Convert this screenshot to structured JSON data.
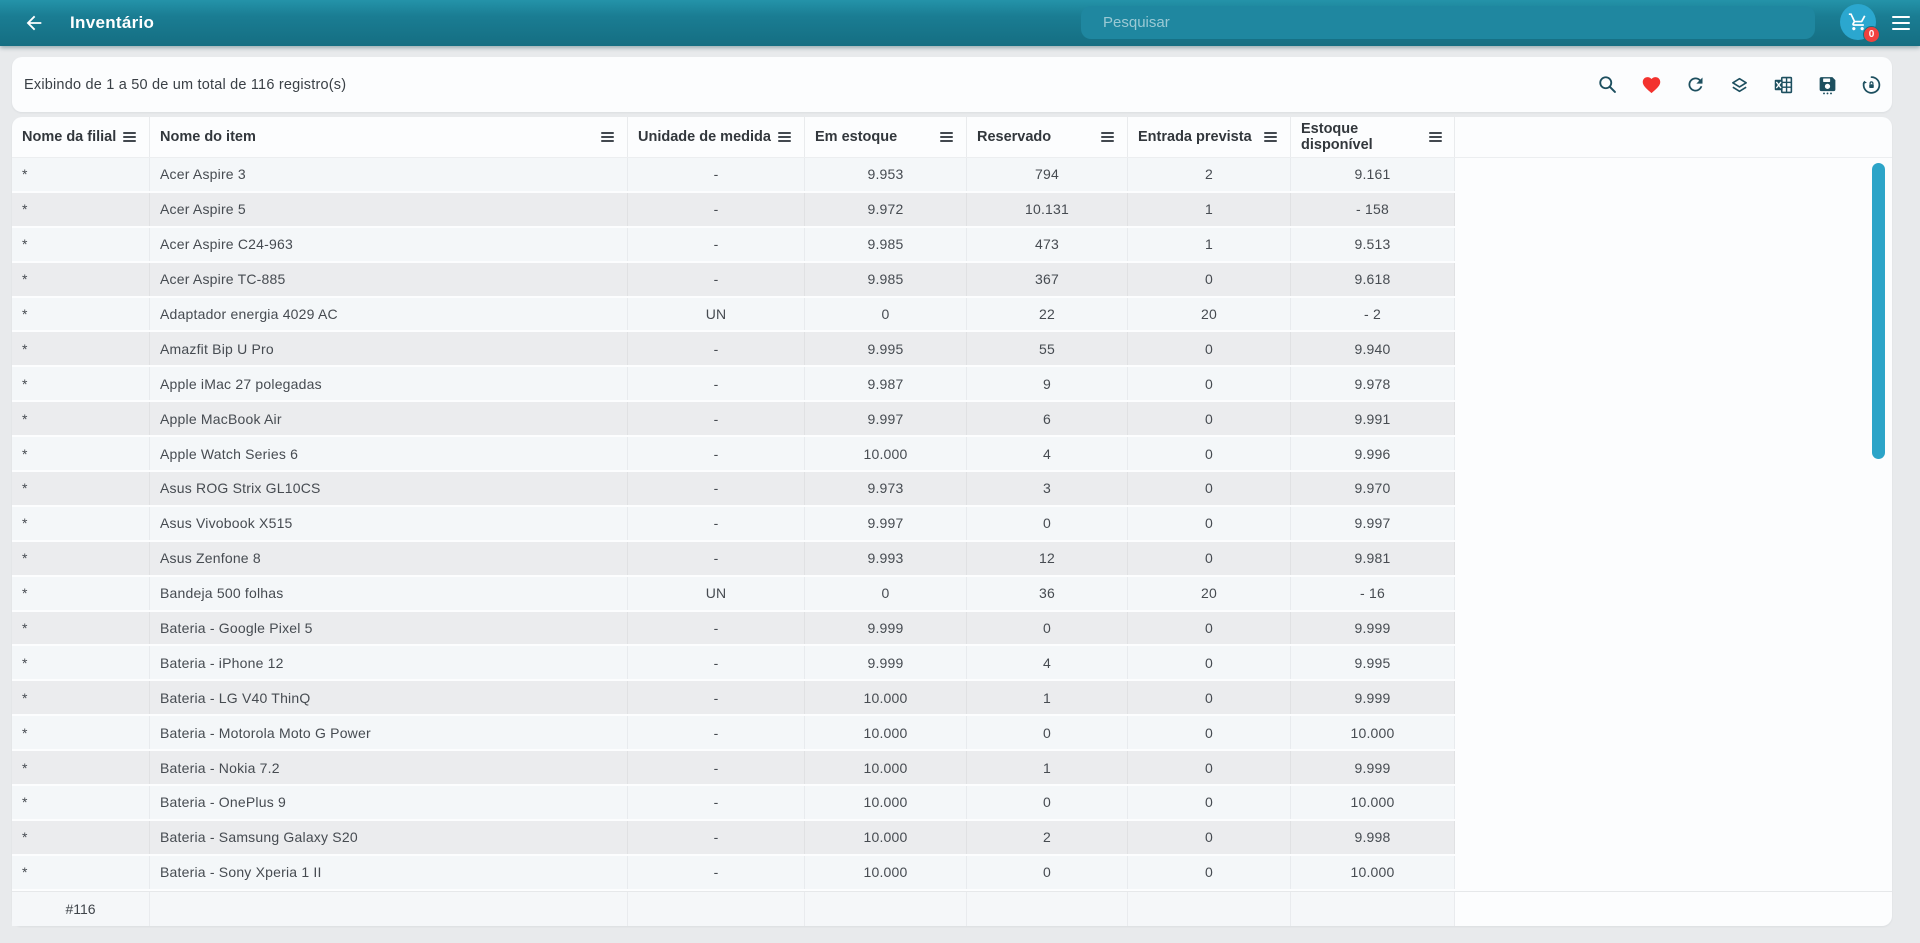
{
  "header": {
    "title": "Inventário",
    "search_placeholder": "Pesquisar",
    "cart_badge": "0"
  },
  "toolbar": {
    "status": "Exibindo de 1 a 50 de um total de 116 registro(s)",
    "icons": [
      "search",
      "favorites-heart",
      "refresh",
      "layers",
      "export-excel",
      "save",
      "restore-history"
    ]
  },
  "table": {
    "columns": [
      {
        "key": "filial",
        "label": "Nome da filial",
        "align": "left"
      },
      {
        "key": "item",
        "label": "Nome do item",
        "align": "left"
      },
      {
        "key": "unidade",
        "label": "Unidade de medida",
        "align": "center"
      },
      {
        "key": "estoque",
        "label": "Em estoque",
        "align": "center"
      },
      {
        "key": "reservado",
        "label": "Reservado",
        "align": "center"
      },
      {
        "key": "entrada",
        "label": "Entrada prevista",
        "align": "center"
      },
      {
        "key": "disponivel",
        "label": "Estoque disponível",
        "align": "center"
      }
    ],
    "rows": [
      {
        "filial": "*",
        "item": "Acer Aspire 3",
        "unidade": "-",
        "estoque": "9.953",
        "reservado": "794",
        "entrada": "2",
        "disponivel": "9.161"
      },
      {
        "filial": "*",
        "item": "Acer Aspire 5",
        "unidade": "-",
        "estoque": "9.972",
        "reservado": "10.131",
        "entrada": "1",
        "disponivel": "- 158"
      },
      {
        "filial": "*",
        "item": "Acer Aspire C24-963",
        "unidade": "-",
        "estoque": "9.985",
        "reservado": "473",
        "entrada": "1",
        "disponivel": "9.513"
      },
      {
        "filial": "*",
        "item": "Acer Aspire TC-885",
        "unidade": "-",
        "estoque": "9.985",
        "reservado": "367",
        "entrada": "0",
        "disponivel": "9.618"
      },
      {
        "filial": "*",
        "item": "Adaptador energia 4029 AC",
        "unidade": "UN",
        "estoque": "0",
        "reservado": "22",
        "entrada": "20",
        "disponivel": "- 2"
      },
      {
        "filial": "*",
        "item": "Amazfit Bip U Pro",
        "unidade": "-",
        "estoque": "9.995",
        "reservado": "55",
        "entrada": "0",
        "disponivel": "9.940"
      },
      {
        "filial": "*",
        "item": "Apple iMac 27 polegadas",
        "unidade": "-",
        "estoque": "9.987",
        "reservado": "9",
        "entrada": "0",
        "disponivel": "9.978"
      },
      {
        "filial": "*",
        "item": "Apple MacBook Air",
        "unidade": "-",
        "estoque": "9.997",
        "reservado": "6",
        "entrada": "0",
        "disponivel": "9.991"
      },
      {
        "filial": "*",
        "item": "Apple Watch Series 6",
        "unidade": "-",
        "estoque": "10.000",
        "reservado": "4",
        "entrada": "0",
        "disponivel": "9.996"
      },
      {
        "filial": "*",
        "item": "Asus ROG Strix GL10CS",
        "unidade": "-",
        "estoque": "9.973",
        "reservado": "3",
        "entrada": "0",
        "disponivel": "9.970"
      },
      {
        "filial": "*",
        "item": "Asus Vivobook X515",
        "unidade": "-",
        "estoque": "9.997",
        "reservado": "0",
        "entrada": "0",
        "disponivel": "9.997"
      },
      {
        "filial": "*",
        "item": "Asus Zenfone 8",
        "unidade": "-",
        "estoque": "9.993",
        "reservado": "12",
        "entrada": "0",
        "disponivel": "9.981"
      },
      {
        "filial": "*",
        "item": "Bandeja 500 folhas",
        "unidade": "UN",
        "estoque": "0",
        "reservado": "36",
        "entrada": "20",
        "disponivel": "- 16"
      },
      {
        "filial": "*",
        "item": "Bateria - Google Pixel 5",
        "unidade": "-",
        "estoque": "9.999",
        "reservado": "0",
        "entrada": "0",
        "disponivel": "9.999"
      },
      {
        "filial": "*",
        "item": "Bateria - iPhone 12",
        "unidade": "-",
        "estoque": "9.999",
        "reservado": "4",
        "entrada": "0",
        "disponivel": "9.995"
      },
      {
        "filial": "*",
        "item": "Bateria - LG V40 ThinQ",
        "unidade": "-",
        "estoque": "10.000",
        "reservado": "1",
        "entrada": "0",
        "disponivel": "9.999"
      },
      {
        "filial": "*",
        "item": "Bateria - Motorola Moto G Power",
        "unidade": "-",
        "estoque": "10.000",
        "reservado": "0",
        "entrada": "0",
        "disponivel": "10.000"
      },
      {
        "filial": "*",
        "item": "Bateria - Nokia 7.2",
        "unidade": "-",
        "estoque": "10.000",
        "reservado": "1",
        "entrada": "0",
        "disponivel": "9.999"
      },
      {
        "filial": "*",
        "item": "Bateria - OnePlus 9",
        "unidade": "-",
        "estoque": "10.000",
        "reservado": "0",
        "entrada": "0",
        "disponivel": "10.000"
      },
      {
        "filial": "*",
        "item": "Bateria - Samsung Galaxy S20",
        "unidade": "-",
        "estoque": "10.000",
        "reservado": "2",
        "entrada": "0",
        "disponivel": "9.998"
      },
      {
        "filial": "*",
        "item": "Bateria - Sony Xperia 1 II",
        "unidade": "-",
        "estoque": "10.000",
        "reservado": "0",
        "entrada": "0",
        "disponivel": "10.000"
      }
    ],
    "footer": {
      "count": "#116"
    }
  },
  "colors": {
    "header_teal": "#1a7d93",
    "search_box": "#1f87a0",
    "cart_circle": "#2ba7cf",
    "badge_red": "#f0413e",
    "heart_red": "#f3322e",
    "toolbar_icon": "#1d4f5f",
    "scrollbar": "#2ca4c8",
    "row_light": "#f4f7f9",
    "row_dark": "#ebecee"
  }
}
